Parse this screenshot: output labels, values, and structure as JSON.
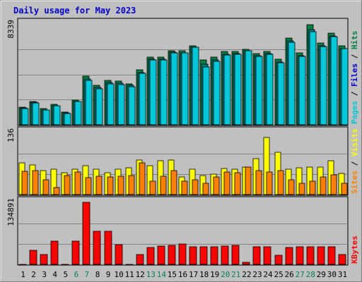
{
  "title": "Daily usage for May 2023",
  "colors": {
    "panel_bg": "#c0c0c0",
    "pages": "#00c8d8",
    "pages_dark": "#007e88",
    "hits": "#008040",
    "sites": "#ff8000",
    "visits": "#ffff00",
    "kbytes": "#ff0000",
    "weekend_label": "#00805c",
    "weekday_label": "#000000"
  },
  "chart_data": [
    {
      "type": "bar",
      "name": "pages-files-hits",
      "axis_max_label": "8339",
      "ylim": [
        0,
        8339
      ],
      "legend": [
        {
          "text": "Pages",
          "color": "#00c8d8"
        },
        {
          "text": "Files",
          "color": "#0000cc"
        },
        {
          "text": "Hits",
          "color": "#008040"
        }
      ],
      "categories": [
        "1",
        "2",
        "3",
        "4",
        "5",
        "6",
        "7",
        "8",
        "9",
        "10",
        "11",
        "12",
        "13",
        "14",
        "15",
        "16",
        "17",
        "18",
        "19",
        "20",
        "21",
        "22",
        "23",
        "24",
        "25",
        "26",
        "27",
        "28",
        "29",
        "30",
        "31"
      ],
      "series": [
        {
          "name": "Hits",
          "values": [
            1480,
            1930,
            1330,
            1680,
            1070,
            2020,
            4050,
            3290,
            3650,
            3610,
            3410,
            4520,
            5600,
            5590,
            6120,
            6120,
            6540,
            5370,
            5600,
            6050,
            6070,
            6260,
            5870,
            6040,
            5410,
            7150,
            5920,
            8290,
            6760,
            7560,
            6540
          ]
        },
        {
          "name": "Files",
          "values": [
            1400,
            1840,
            1250,
            1600,
            980,
            1950,
            3810,
            3110,
            3480,
            3420,
            3250,
            4300,
            5410,
            5410,
            5980,
            5970,
            6420,
            5040,
            5380,
            5830,
            5880,
            6120,
            5700,
            5870,
            5210,
            6920,
            5730,
            7850,
            6520,
            7340,
            6320
          ]
        },
        {
          "name": "Pages",
          "values": [
            1350,
            1790,
            1200,
            1550,
            930,
            1900,
            3700,
            3000,
            3400,
            3350,
            3150,
            4250,
            5350,
            5350,
            5950,
            5950,
            6400,
            4800,
            5270,
            5800,
            5850,
            6100,
            5650,
            5850,
            5150,
            6850,
            5680,
            7700,
            6470,
            7280,
            6280
          ]
        }
      ]
    },
    {
      "type": "bar",
      "name": "sites-visits",
      "axis_max_label": "136",
      "ylim": [
        0,
        136
      ],
      "legend": [
        {
          "text": "Sites",
          "color": "#ff8000"
        },
        {
          "text": "Visits",
          "color": "#ffff00"
        }
      ],
      "categories": [
        "1",
        "2",
        "3",
        "4",
        "5",
        "6",
        "7",
        "8",
        "9",
        "10",
        "11",
        "12",
        "13",
        "14",
        "15",
        "16",
        "17",
        "18",
        "19",
        "20",
        "21",
        "22",
        "23",
        "24",
        "25",
        "26",
        "27",
        "28",
        "29",
        "30",
        "31"
      ],
      "series": [
        {
          "name": "Visits",
          "values": [
            70,
            65,
            52,
            55,
            48,
            55,
            64,
            56,
            48,
            55,
            59,
            75,
            64,
            74,
            76,
            38,
            55,
            41,
            45,
            57,
            55,
            61,
            79,
            125,
            92,
            56,
            59,
            60,
            61,
            74,
            46
          ]
        },
        {
          "name": "Sites",
          "values": [
            51,
            52,
            33,
            15,
            42,
            50,
            37,
            40,
            39,
            40,
            41,
            70,
            30,
            40,
            52,
            30,
            32,
            25,
            39,
            49,
            48,
            61,
            52,
            50,
            53,
            33,
            25,
            30,
            39,
            43,
            25
          ]
        }
      ]
    },
    {
      "type": "bar",
      "name": "kbytes",
      "axis_max_label": "134891",
      "ylim": [
        0,
        134891
      ],
      "legend": [
        {
          "text": "KBytes",
          "color": "#ff0000"
        }
      ],
      "categories": [
        "1",
        "2",
        "3",
        "4",
        "5",
        "6",
        "7",
        "8",
        "9",
        "10",
        "11",
        "12",
        "13",
        "14",
        "15",
        "16",
        "17",
        "18",
        "19",
        "20",
        "21",
        "22",
        "23",
        "24",
        "25",
        "26",
        "27",
        "28",
        "29",
        "30",
        "31"
      ],
      "series": [
        {
          "name": "KBytes",
          "values": [
            0,
            31000,
            21000,
            51000,
            0,
            51000,
            134891,
            72000,
            72000,
            43000,
            0,
            21000,
            37000,
            40000,
            41000,
            44000,
            38000,
            38000,
            39000,
            40000,
            41000,
            5000,
            38000,
            39000,
            20000,
            37000,
            39000,
            39000,
            38000,
            39000,
            22000
          ]
        }
      ]
    }
  ],
  "day_labels": [
    {
      "t": "1",
      "w": false
    },
    {
      "t": "2",
      "w": false
    },
    {
      "t": "3",
      "w": false
    },
    {
      "t": "4",
      "w": false
    },
    {
      "t": "5",
      "w": false
    },
    {
      "t": "6",
      "w": true
    },
    {
      "t": "7",
      "w": true
    },
    {
      "t": "8",
      "w": false
    },
    {
      "t": "9",
      "w": false
    },
    {
      "t": "10",
      "w": false
    },
    {
      "t": "11",
      "w": false
    },
    {
      "t": "12",
      "w": false
    },
    {
      "t": "13",
      "w": true
    },
    {
      "t": "14",
      "w": true
    },
    {
      "t": "15",
      "w": false
    },
    {
      "t": "16",
      "w": false
    },
    {
      "t": "17",
      "w": false
    },
    {
      "t": "18",
      "w": false
    },
    {
      "t": "19",
      "w": false
    },
    {
      "t": "20",
      "w": true
    },
    {
      "t": "21",
      "w": true
    },
    {
      "t": "22",
      "w": false
    },
    {
      "t": "23",
      "w": false
    },
    {
      "t": "24",
      "w": false
    },
    {
      "t": "25",
      "w": false
    },
    {
      "t": "26",
      "w": false
    },
    {
      "t": "27",
      "w": true
    },
    {
      "t": "28",
      "w": true
    },
    {
      "t": "29",
      "w": false
    },
    {
      "t": "30",
      "w": false
    },
    {
      "t": "31",
      "w": false
    }
  ]
}
